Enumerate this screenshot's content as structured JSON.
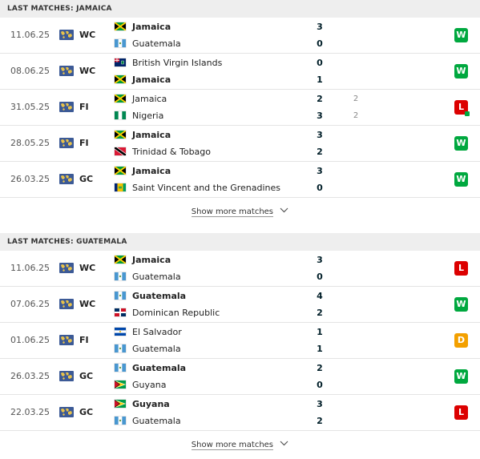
{
  "sections": [
    {
      "title": "LAST MATCHES: JAMAICA",
      "show_more": "Show more matches",
      "matches": [
        {
          "date": "11.06.25",
          "comp": "WC",
          "home": {
            "name": "Jamaica",
            "flag": "jamaica",
            "bold": true
          },
          "away": {
            "name": "Guatemala",
            "flag": "guatemala",
            "bold": false
          },
          "home_score": "3",
          "away_score": "0",
          "home_pen": "",
          "away_pen": "",
          "result": "W"
        },
        {
          "date": "08.06.25",
          "comp": "WC",
          "home": {
            "name": "British Virgin Islands",
            "flag": "bvi",
            "bold": false
          },
          "away": {
            "name": "Jamaica",
            "flag": "jamaica",
            "bold": true
          },
          "home_score": "0",
          "away_score": "1",
          "home_pen": "",
          "away_pen": "",
          "result": "W"
        },
        {
          "date": "31.05.25",
          "comp": "FI",
          "home": {
            "name": "Jamaica",
            "flag": "jamaica",
            "bold": false
          },
          "away": {
            "name": "Nigeria",
            "flag": "nigeria",
            "bold": false
          },
          "home_score": "2",
          "away_score": "3",
          "home_pen": "2",
          "away_pen": "2",
          "result": "L"
        },
        {
          "date": "28.05.25",
          "comp": "FI",
          "home": {
            "name": "Jamaica",
            "flag": "jamaica",
            "bold": true
          },
          "away": {
            "name": "Trinidad & Tobago",
            "flag": "trinidad",
            "bold": false
          },
          "home_score": "3",
          "away_score": "2",
          "home_pen": "",
          "away_pen": "",
          "result": "W"
        },
        {
          "date": "26.03.25",
          "comp": "GC",
          "home": {
            "name": "Jamaica",
            "flag": "jamaica",
            "bold": true
          },
          "away": {
            "name": "Saint Vincent and the Grenadines",
            "flag": "svg",
            "bold": false
          },
          "home_score": "3",
          "away_score": "0",
          "home_pen": "",
          "away_pen": "",
          "result": "W"
        }
      ]
    },
    {
      "title": "LAST MATCHES: GUATEMALA",
      "show_more": "Show more matches",
      "matches": [
        {
          "date": "11.06.25",
          "comp": "WC",
          "home": {
            "name": "Jamaica",
            "flag": "jamaica",
            "bold": true
          },
          "away": {
            "name": "Guatemala",
            "flag": "guatemala",
            "bold": false
          },
          "home_score": "3",
          "away_score": "0",
          "home_pen": "",
          "away_pen": "",
          "result": "L"
        },
        {
          "date": "07.06.25",
          "comp": "WC",
          "home": {
            "name": "Guatemala",
            "flag": "guatemala",
            "bold": true
          },
          "away": {
            "name": "Dominican Republic",
            "flag": "dominican",
            "bold": false
          },
          "home_score": "4",
          "away_score": "2",
          "home_pen": "",
          "away_pen": "",
          "result": "W"
        },
        {
          "date": "01.06.25",
          "comp": "FI",
          "home": {
            "name": "El Salvador",
            "flag": "elsalvador",
            "bold": false
          },
          "away": {
            "name": "Guatemala",
            "flag": "guatemala",
            "bold": false
          },
          "home_score": "1",
          "away_score": "1",
          "home_pen": "",
          "away_pen": "",
          "result": "D"
        },
        {
          "date": "26.03.25",
          "comp": "GC",
          "home": {
            "name": "Guatemala",
            "flag": "guatemala",
            "bold": true
          },
          "away": {
            "name": "Guyana",
            "flag": "guyana",
            "bold": false
          },
          "home_score": "2",
          "away_score": "0",
          "home_pen": "",
          "away_pen": "",
          "result": "W"
        },
        {
          "date": "22.03.25",
          "comp": "GC",
          "home": {
            "name": "Guyana",
            "flag": "guyana",
            "bold": true
          },
          "away": {
            "name": "Guatemala",
            "flag": "guatemala",
            "bold": false
          },
          "home_score": "3",
          "away_score": "2",
          "home_pen": "",
          "away_pen": "",
          "result": "L"
        }
      ]
    }
  ],
  "colors": {
    "win": "#00a83f",
    "loss": "#dc0000",
    "draw": "#f3a000"
  },
  "icons": {
    "competition": "world-map-icon",
    "show_more": "chevron-down-icon"
  }
}
